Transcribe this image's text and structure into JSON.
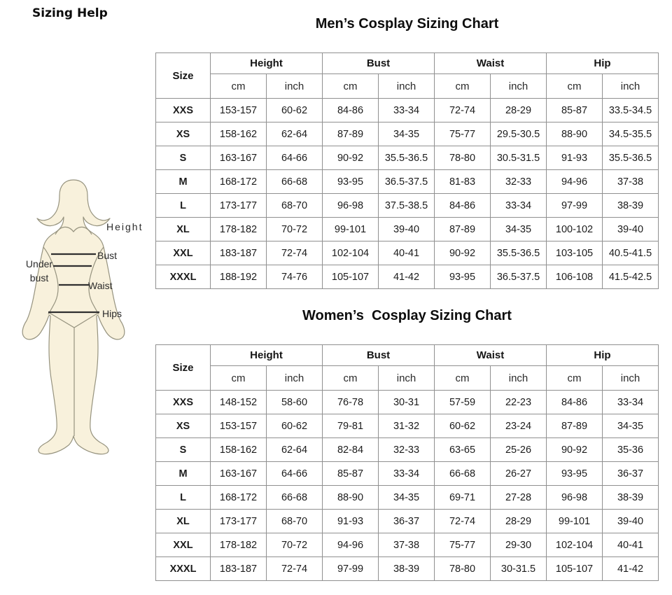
{
  "page": {
    "heading": "Sizing Help",
    "background": "#ffffff"
  },
  "figure": {
    "fill_color": "#f8f1dc",
    "outline_color": "#96937f",
    "measure_line_color": "#2f2f2f",
    "labels": {
      "height": "Height",
      "bust": "Bust",
      "under_bust": "Under bust",
      "waist": "Waist",
      "hips": "Hips"
    }
  },
  "tables": {
    "header": {
      "size": "Size",
      "groups": [
        "Height",
        "Bust",
        "Waist",
        "Hip"
      ],
      "units": [
        "cm",
        "inch"
      ]
    },
    "men": {
      "title": "Men’s Cosplay Sizing Chart",
      "rows": [
        [
          "XXS",
          "153-157",
          "60-62",
          "84-86",
          "33-34",
          "72-74",
          "28-29",
          "85-87",
          "33.5-34.5"
        ],
        [
          "XS",
          "158-162",
          "62-64",
          "87-89",
          "34-35",
          "75-77",
          "29.5-30.5",
          "88-90",
          "34.5-35.5"
        ],
        [
          "S",
          "163-167",
          "64-66",
          "90-92",
          "35.5-36.5",
          "78-80",
          "30.5-31.5",
          "91-93",
          "35.5-36.5"
        ],
        [
          "M",
          "168-172",
          "66-68",
          "93-95",
          "36.5-37.5",
          "81-83",
          "32-33",
          "94-96",
          "37-38"
        ],
        [
          "L",
          "173-177",
          "68-70",
          "96-98",
          "37.5-38.5",
          "84-86",
          "33-34",
          "97-99",
          "38-39"
        ],
        [
          "XL",
          "178-182",
          "70-72",
          "99-101",
          "39-40",
          "87-89",
          "34-35",
          "100-102",
          "39-40"
        ],
        [
          "XXL",
          "183-187",
          "72-74",
          "102-104",
          "40-41",
          "90-92",
          "35.5-36.5",
          "103-105",
          "40.5-41.5"
        ],
        [
          "XXXL",
          "188-192",
          "74-76",
          "105-107",
          "41-42",
          "93-95",
          "36.5-37.5",
          "106-108",
          "41.5-42.5"
        ]
      ]
    },
    "women": {
      "title": "Women’s  Cosplay Sizing Chart",
      "rows": [
        [
          "XXS",
          "148-152",
          "58-60",
          "76-78",
          "30-31",
          "57-59",
          "22-23",
          "84-86",
          "33-34"
        ],
        [
          "XS",
          "153-157",
          "60-62",
          "79-81",
          "31-32",
          "60-62",
          "23-24",
          "87-89",
          "34-35"
        ],
        [
          "S",
          "158-162",
          "62-64",
          "82-84",
          "32-33",
          "63-65",
          "25-26",
          "90-92",
          "35-36"
        ],
        [
          "M",
          "163-167",
          "64-66",
          "85-87",
          "33-34",
          "66-68",
          "26-27",
          "93-95",
          "36-37"
        ],
        [
          "L",
          "168-172",
          "66-68",
          "88-90",
          "34-35",
          "69-71",
          "27-28",
          "96-98",
          "38-39"
        ],
        [
          "XL",
          "173-177",
          "68-70",
          "91-93",
          "36-37",
          "72-74",
          "28-29",
          "99-101",
          "39-40"
        ],
        [
          "XXL",
          "178-182",
          "70-72",
          "94-96",
          "37-38",
          "75-77",
          "29-30",
          "102-104",
          "40-41"
        ],
        [
          "XXXL",
          "183-187",
          "72-74",
          "97-99",
          "38-39",
          "78-80",
          "30-31.5",
          "105-107",
          "41-42"
        ]
      ]
    }
  }
}
